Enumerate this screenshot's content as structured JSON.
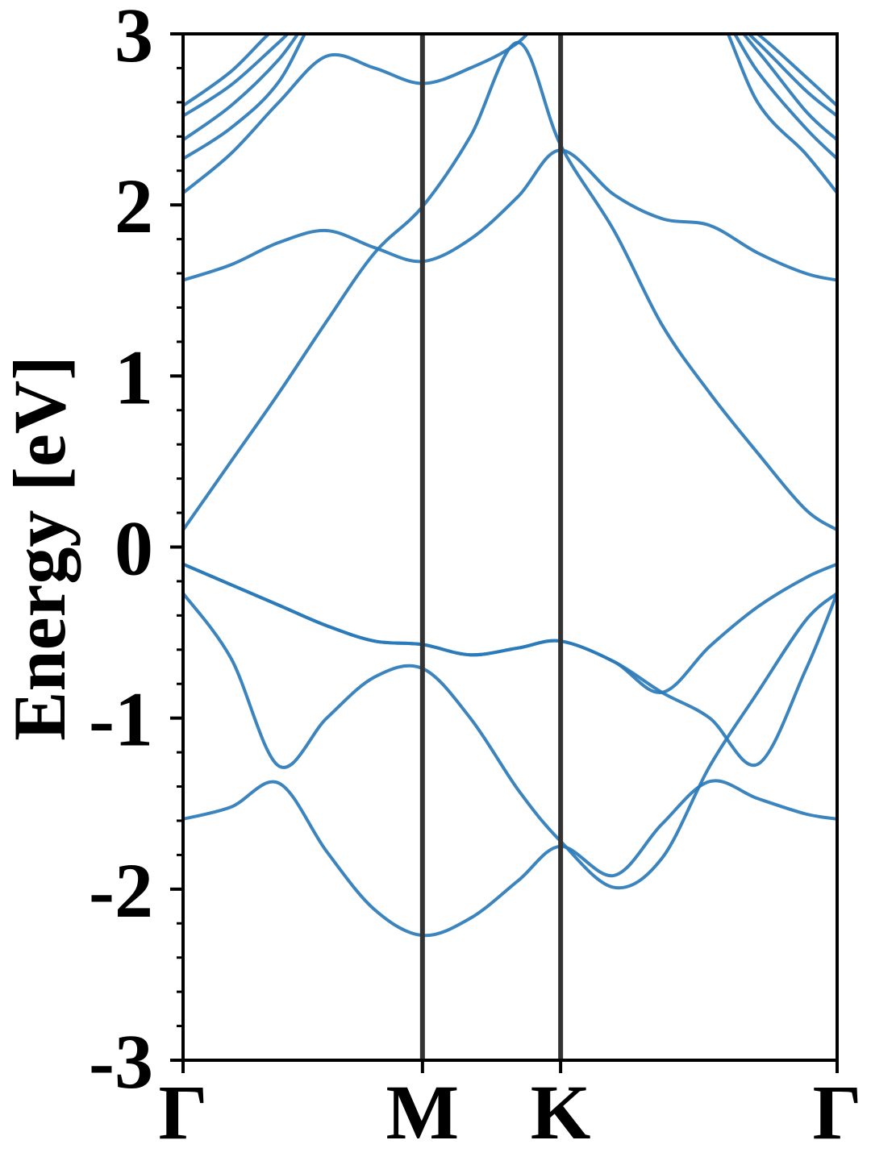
{
  "chart_data": {
    "type": "line",
    "title": "",
    "xlabel": "",
    "ylabel": "Energy [eV]",
    "ylim": [
      -3,
      3
    ],
    "y_ticks": [
      -3,
      -2,
      -1,
      0,
      1,
      2,
      3
    ],
    "y_tick_labels": [
      "-3",
      "-2",
      "-1",
      "0",
      "1",
      "2",
      "3"
    ],
    "y_minor_step": 0.2,
    "x_ticks": [
      0,
      1,
      1.577,
      2.732
    ],
    "x_tick_labels": [
      "Γ",
      "M",
      "K",
      "Γ"
    ],
    "xlim": [
      0,
      2.732
    ],
    "grid": false,
    "legend": "none",
    "colors": {
      "band": "#2a7ab8",
      "divider": "#333333",
      "axis": "#000000"
    },
    "series": [
      {
        "x": [
          0,
          0.2,
          0.4,
          0.6,
          0.8,
          1.0,
          1.2,
          1.4,
          1.577,
          1.8,
          2.0,
          2.2,
          2.4,
          2.6,
          2.732
        ],
        "values": [
          -1.59,
          -1.52,
          -1.38,
          -1.78,
          -2.12,
          -2.27,
          -2.17,
          -1.95,
          -1.75,
          -1.92,
          -1.62,
          -1.37,
          -1.47,
          -1.56,
          -1.59
        ]
      },
      {
        "x": [
          0,
          0.2,
          0.4,
          0.6,
          0.8,
          1.0,
          1.2,
          1.4,
          1.577,
          1.8,
          2.0,
          2.2,
          2.4,
          2.6,
          2.732
        ],
        "values": [
          -0.27,
          -0.65,
          -1.28,
          -1.0,
          -0.76,
          -0.71,
          -1.0,
          -1.42,
          -1.72,
          -1.99,
          -1.82,
          -1.28,
          -0.85,
          -0.43,
          -0.27
        ]
      },
      {
        "x": [
          0,
          0.2,
          0.4,
          0.6,
          0.8,
          1.0,
          1.2,
          1.4,
          1.577,
          1.8,
          2.0,
          2.2,
          2.4,
          2.6,
          2.732
        ],
        "values": [
          -0.1,
          -0.22,
          -0.34,
          -0.46,
          -0.55,
          -0.57,
          -0.63,
          -0.59,
          -0.55,
          -0.67,
          -0.85,
          -1.0,
          -1.27,
          -0.72,
          -0.27
        ]
      },
      {
        "x": [
          0,
          0.2,
          0.4,
          0.6,
          0.8,
          1.0,
          1.2,
          1.4,
          1.577,
          1.8,
          2.0,
          2.2,
          2.4,
          2.6,
          2.732
        ],
        "values": [
          -0.1,
          -0.22,
          -0.34,
          -0.46,
          -0.55,
          -0.57,
          -0.63,
          -0.59,
          -0.55,
          -0.67,
          -0.85,
          -0.58,
          -0.35,
          -0.18,
          -0.1
        ]
      },
      {
        "x": [
          0,
          0.2,
          0.4,
          0.6,
          0.8,
          1.0,
          1.2,
          1.4,
          1.577,
          1.8,
          2.0,
          2.2,
          2.4,
          2.6,
          2.732
        ],
        "values": [
          0.1,
          0.5,
          0.9,
          1.32,
          1.72,
          1.99,
          2.4,
          2.95,
          2.35,
          1.85,
          1.3,
          0.9,
          0.55,
          0.22,
          0.1
        ]
      },
      {
        "x": [
          0,
          0.2,
          0.4,
          0.6,
          0.8,
          1.0,
          1.2,
          1.4,
          1.577,
          1.8,
          2.0,
          2.2,
          2.4,
          2.6,
          2.732
        ],
        "values": [
          1.56,
          1.65,
          1.78,
          1.85,
          1.75,
          1.67,
          1.8,
          2.05,
          2.32,
          2.06,
          1.92,
          1.88,
          1.72,
          1.6,
          1.56
        ]
      },
      {
        "x": [
          0,
          0.2,
          0.4,
          0.6,
          0.8,
          1.0,
          1.2,
          1.4,
          1.577,
          1.8,
          2.0,
          2.2,
          2.4,
          2.6,
          2.732
        ],
        "values": [
          2.07,
          2.3,
          2.6,
          2.87,
          2.8,
          2.71,
          2.8,
          2.95,
          3.2,
          3.2,
          3.2,
          3.2,
          2.6,
          2.3,
          2.07
        ]
      },
      {
        "x": [
          0,
          0.2,
          0.4,
          0.6,
          0.8,
          1.0,
          1.2,
          1.4,
          1.577,
          1.8,
          2.0,
          2.2,
          2.4,
          2.6,
          2.732
        ],
        "values": [
          2.27,
          2.45,
          2.72,
          3.2,
          3.2,
          3.2,
          3.2,
          3.2,
          3.2,
          3.2,
          3.2,
          3.2,
          2.78,
          2.45,
          2.27
        ]
      },
      {
        "x": [
          0,
          0.2,
          0.4,
          0.6,
          0.8,
          1.0,
          1.2,
          1.4,
          1.577,
          1.8,
          2.0,
          2.2,
          2.4,
          2.6,
          2.732
        ],
        "values": [
          2.38,
          2.58,
          2.85,
          3.2,
          3.2,
          3.2,
          3.2,
          3.2,
          3.2,
          3.2,
          3.2,
          3.2,
          2.9,
          2.55,
          2.38
        ]
      },
      {
        "x": [
          0,
          0.2,
          0.4,
          0.6,
          0.8,
          1.0,
          1.2,
          1.4,
          1.577,
          1.8,
          2.0,
          2.2,
          2.4,
          2.6,
          2.732
        ],
        "values": [
          2.52,
          2.7,
          2.95,
          3.2,
          3.2,
          3.2,
          3.2,
          3.2,
          3.2,
          3.2,
          3.2,
          3.2,
          2.95,
          2.67,
          2.52
        ]
      },
      {
        "x": [
          0,
          0.2,
          0.4,
          0.6,
          0.8,
          1.0,
          1.2,
          1.4,
          1.577,
          1.8,
          2.0,
          2.2,
          2.4,
          2.6,
          2.732
        ],
        "values": [
          2.58,
          2.78,
          3.05,
          3.2,
          3.2,
          3.2,
          3.2,
          3.2,
          3.2,
          3.2,
          3.2,
          3.2,
          3.0,
          2.75,
          2.58
        ]
      }
    ]
  }
}
